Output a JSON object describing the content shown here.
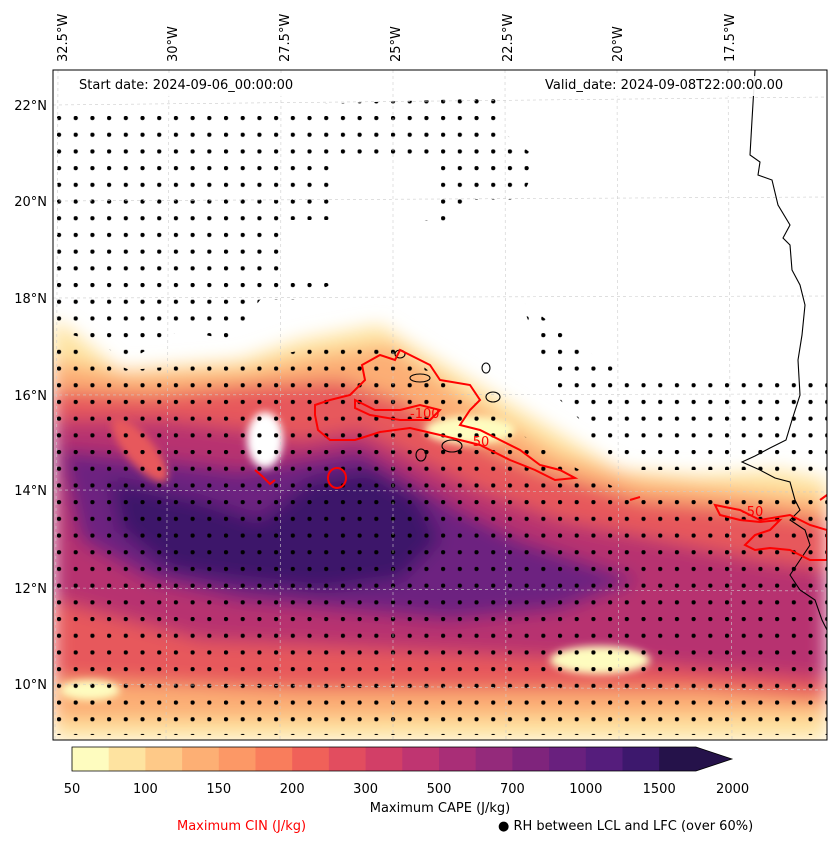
{
  "map": {
    "start_date": "Start date: 2024-09-06_00:00:00",
    "valid_date": "Valid_date: 2024-09-08T22:00:00.00",
    "lon_labels": [
      "32.5°W",
      "30°W",
      "27.5°W",
      "25°W",
      "22.5°W",
      "20°W",
      "17.5°W"
    ],
    "lat_labels": [
      "22°N",
      "20°N",
      "18°N",
      "16°N",
      "14°N",
      "12°N",
      "10°N"
    ],
    "contour_labels": [
      "-100",
      "-50",
      "-50"
    ]
  },
  "colorbar": {
    "label": "Maximum CAPE (J/kg)",
    "ticks": [
      "50",
      "100",
      "150",
      "200",
      "300",
      "500",
      "700",
      "1000",
      "1500",
      "2000"
    ],
    "colors": [
      "#fefcbf",
      "#fee3a0",
      "#fec988",
      "#fdaf74",
      "#fc9866",
      "#f97d5c",
      "#f06159",
      "#e24d5f",
      "#d23f67",
      "#bf3571",
      "#a92e77",
      "#942a7b",
      "#7f247c",
      "#69207e",
      "#551d7c",
      "#3d186d",
      "#25124a"
    ]
  },
  "legend": {
    "cin": "Maximum CIN (J/kg)",
    "cin_color": "#ff0000",
    "rh_symbol": "●",
    "rh": "RH between LCL and LFC (over 60%)"
  }
}
